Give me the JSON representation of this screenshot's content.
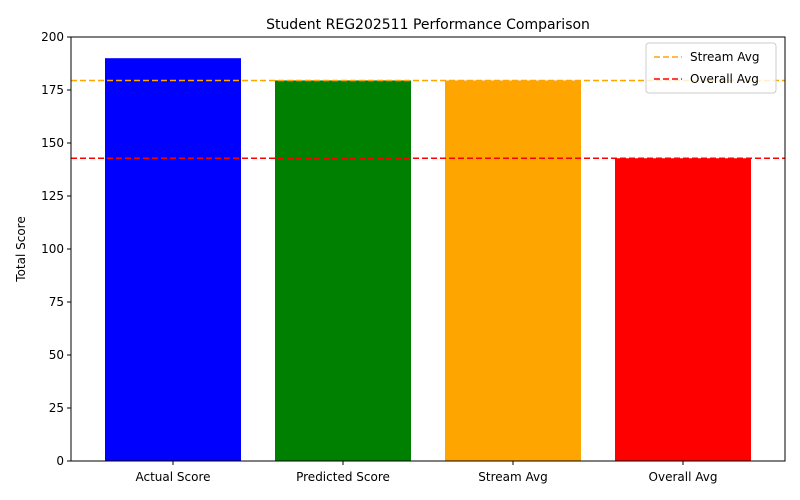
{
  "chart_data": {
    "type": "bar",
    "title": "Student REG202511 Performance Comparison",
    "xlabel": "",
    "ylabel": "Total Score",
    "ylim": [
      0,
      200
    ],
    "yticks": [
      0,
      25,
      50,
      75,
      100,
      125,
      150,
      175,
      200
    ],
    "categories": [
      "Actual Score",
      "Predicted Score",
      "Stream Avg",
      "Overall Avg"
    ],
    "values": [
      190,
      179.5,
      179.5,
      142.8
    ],
    "bar_colors": [
      "#0000ff",
      "#008000",
      "#ffa500",
      "#ff0000"
    ],
    "reference_lines": [
      {
        "name": "Stream Avg",
        "value": 179.5,
        "color": "#ffa500",
        "style": "dashed"
      },
      {
        "name": "Overall Avg",
        "value": 142.8,
        "color": "#ff0000",
        "style": "dashed"
      }
    ],
    "legend": {
      "placement": "top-right"
    },
    "grid": false
  }
}
